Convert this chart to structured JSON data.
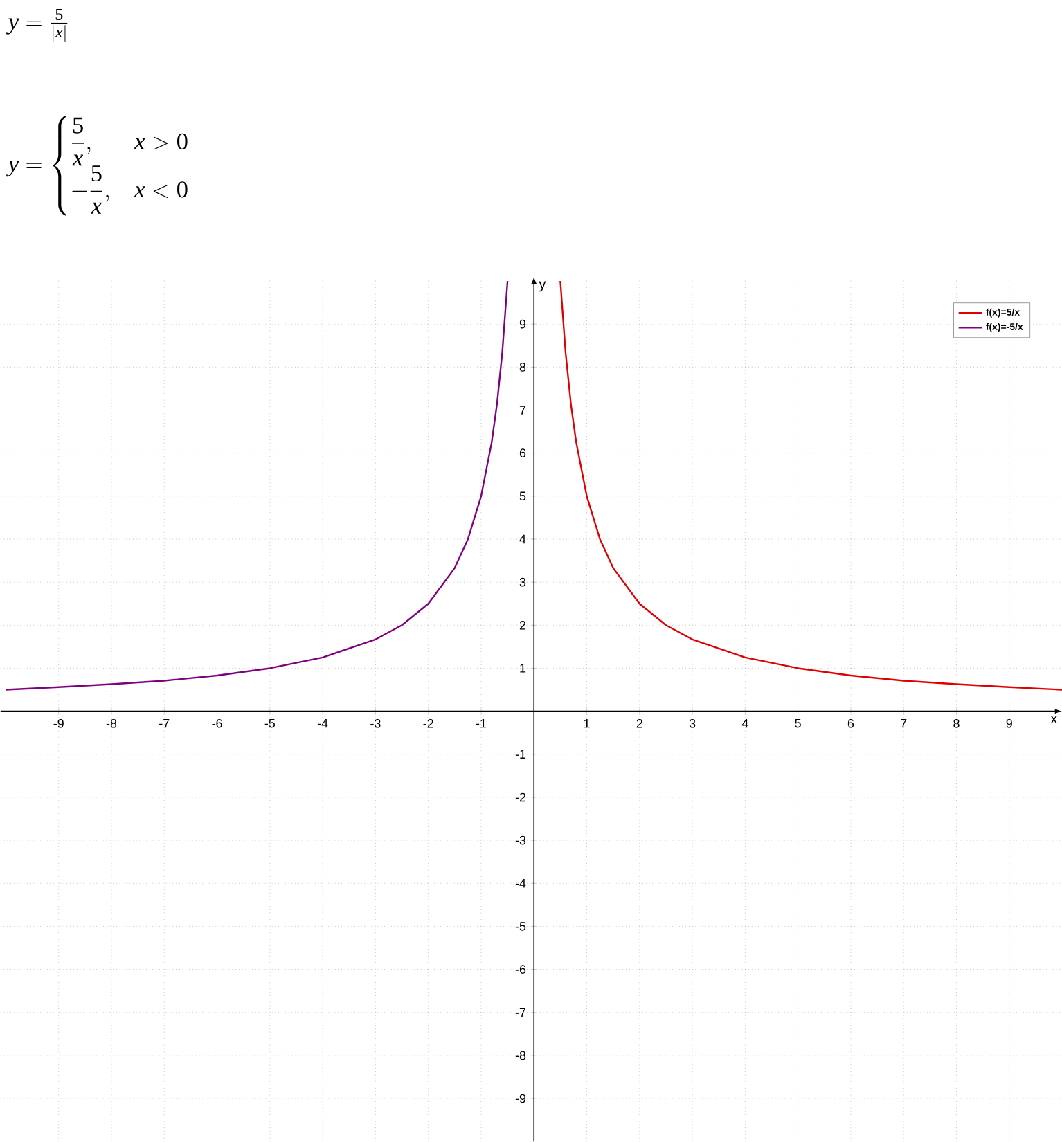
{
  "chart_data": {
    "type": "line",
    "title": "y=\\frac{5}{|x|}",
    "subtitle": "y=\\begin{cases}\\dfrac{5}{x}, & x>0\\\\ -\\dfrac{5}{x}, & x<0\\end{cases}",
    "xlabel": "x",
    "ylabel": "y",
    "xlim": [
      -10.1,
      10
    ],
    "ylim": [
      -10,
      10.1
    ],
    "xticks": [
      -9,
      -8,
      -7,
      -6,
      -5,
      -4,
      -3,
      -2,
      -1,
      1,
      2,
      3,
      4,
      5,
      6,
      7,
      8,
      9
    ],
    "yticks": [
      -9,
      -8,
      -7,
      -6,
      -5,
      -4,
      -3,
      -2,
      -1,
      1,
      2,
      3,
      4,
      5,
      6,
      7,
      8,
      9
    ],
    "grid": true,
    "legend": "top right",
    "marker": "none",
    "line_style": "solid",
    "series": [
      {
        "name": "f(x)=5/x",
        "color": "#e00000",
        "x": [
          0.5,
          0.6,
          0.7,
          0.8,
          1,
          1.25,
          1.5,
          2,
          2.5,
          3,
          4,
          5,
          6,
          7,
          8,
          9,
          10
        ],
        "values": [
          10,
          8.33,
          7.14,
          6.25,
          5,
          4,
          3.33,
          2.5,
          2,
          1.67,
          1.25,
          1,
          0.83,
          0.71,
          0.63,
          0.56,
          0.5
        ]
      },
      {
        "name": "f(x)=-5/x",
        "color": "#800080",
        "x": [
          -10,
          -9,
          -8,
          -7,
          -6,
          -5,
          -4,
          -3,
          -2.5,
          -2,
          -1.5,
          -1.25,
          -1,
          -0.8,
          -0.7,
          -0.6,
          -0.5
        ],
        "values": [
          0.5,
          0.56,
          0.63,
          0.71,
          0.83,
          1,
          1.25,
          1.67,
          2,
          2.5,
          3.33,
          4,
          5,
          6.25,
          7.14,
          8.33,
          10
        ]
      }
    ]
  }
}
